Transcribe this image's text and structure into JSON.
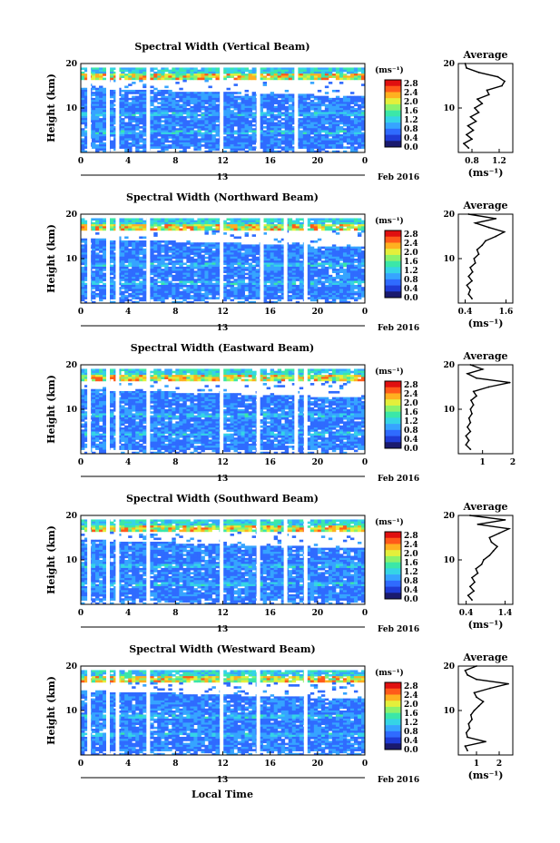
{
  "figure": {
    "shared_xlabel": "Local Time",
    "date_label": "Feb 2016",
    "day_label": "13",
    "colorbar_unit": "(ms⁻¹)",
    "colormap": [
      "#1a1a6e",
      "#1f3cd6",
      "#2f6bff",
      "#36a4ff",
      "#35d4e6",
      "#3be7a8",
      "#8cf26b",
      "#e4ef3b",
      "#ffb020",
      "#ff5a1a",
      "#e01010"
    ],
    "colorbar_ticks": [
      "2.8",
      "2.4",
      "2.0",
      "1.6",
      "1.2",
      "0.8",
      "0.4",
      "0.0"
    ]
  },
  "chart_data": [
    {
      "type": "heatmap",
      "title": "Spectral Width (Vertical Beam)",
      "xlabel": "",
      "ylabel": "Height (km)",
      "x_ticks": [
        "0",
        "4",
        "8",
        "12",
        "16",
        "20",
        "0"
      ],
      "y_ticks": [
        "20",
        "10"
      ],
      "xlim": [
        0,
        24
      ],
      "ylim": [
        0,
        20
      ],
      "unit": "ms^-1",
      "clim": [
        0,
        3.0
      ],
      "data_gaps_hours": [
        0.7,
        2.3,
        3.1,
        5.7,
        11.9,
        15.0,
        18.2
      ],
      "avg_profile": {
        "title": "Average",
        "xlabel": "(ms⁻¹)",
        "x_ticks": [
          "0.8",
          "1.2"
        ],
        "xlim": [
          0.6,
          1.4
        ],
        "height_km": [
          1,
          2,
          3,
          4,
          5,
          6,
          7,
          8,
          9,
          10,
          11,
          12,
          13,
          14,
          15,
          16,
          17,
          18,
          19,
          20
        ],
        "values": [
          0.75,
          0.68,
          0.8,
          0.72,
          0.82,
          0.74,
          0.86,
          0.78,
          0.9,
          0.84,
          0.95,
          0.88,
          1.05,
          1.02,
          1.24,
          1.28,
          1.18,
          0.9,
          0.72,
          0.7
        ]
      }
    },
    {
      "type": "heatmap",
      "title": "Spectral Width (Northward Beam)",
      "xlabel": "",
      "ylabel": "Height (km)",
      "x_ticks": [
        "0",
        "4",
        "8",
        "12",
        "16",
        "20",
        "0"
      ],
      "y_ticks": [
        "20",
        "10"
      ],
      "xlim": [
        0,
        24
      ],
      "ylim": [
        0,
        20
      ],
      "unit": "ms^-1",
      "clim": [
        0,
        3.0
      ],
      "data_gaps_hours": [
        0.7,
        2.3,
        3.1,
        5.7,
        11.9,
        15.3,
        17.3,
        19.0
      ],
      "avg_profile": {
        "title": "Average",
        "xlabel": "(ms⁻¹)",
        "x_ticks": [
          "0.4",
          "1.6"
        ],
        "xlim": [
          0.2,
          1.8
        ],
        "height_km": [
          1,
          2,
          3,
          4,
          5,
          6,
          7,
          8,
          9,
          10,
          11,
          12,
          13,
          14,
          15,
          16,
          17,
          18,
          19,
          20
        ],
        "values": [
          0.6,
          0.5,
          0.55,
          0.45,
          0.6,
          0.5,
          0.62,
          0.55,
          0.7,
          0.66,
          0.8,
          0.75,
          0.9,
          1.0,
          1.3,
          1.55,
          1.1,
          0.7,
          1.3,
          0.5
        ]
      }
    },
    {
      "type": "heatmap",
      "title": "Spectral Width (Eastward Beam)",
      "xlabel": "",
      "ylabel": "Height (km)",
      "x_ticks": [
        "0",
        "4",
        "8",
        "12",
        "16",
        "20",
        "0"
      ],
      "y_ticks": [
        "20",
        "10"
      ],
      "xlim": [
        0,
        24
      ],
      "ylim": [
        0,
        20
      ],
      "unit": "ms^-1",
      "clim": [
        0,
        3.0
      ],
      "data_gaps_hours": [
        0.7,
        2.3,
        3.1,
        5.7,
        11.9,
        15.0,
        18.2,
        19.0
      ],
      "avg_profile": {
        "title": "Average",
        "xlabel": "",
        "x_ticks": [
          "1",
          "2"
        ],
        "xlim": [
          0.2,
          2.0
        ],
        "height_km": [
          1,
          2,
          3,
          4,
          5,
          6,
          7,
          8,
          9,
          10,
          11,
          12,
          13,
          14,
          15,
          16,
          17,
          18,
          19,
          20
        ],
        "values": [
          0.6,
          0.45,
          0.55,
          0.45,
          0.6,
          0.5,
          0.6,
          0.55,
          0.65,
          0.6,
          0.7,
          0.62,
          0.8,
          0.7,
          1.2,
          1.9,
          0.8,
          0.5,
          1.0,
          0.6
        ]
      }
    },
    {
      "type": "heatmap",
      "title": "Spectral Width (Southward Beam)",
      "xlabel": "",
      "ylabel": "Height (km)",
      "x_ticks": [
        "0",
        "4",
        "8",
        "12",
        "16",
        "20",
        "0"
      ],
      "y_ticks": [
        "20",
        "10"
      ],
      "xlim": [
        0,
        24
      ],
      "ylim": [
        0,
        20
      ],
      "unit": "ms^-1",
      "clim": [
        0,
        3.0
      ],
      "data_gaps_hours": [
        0.7,
        2.3,
        3.1,
        5.7,
        11.9,
        15.0,
        17.3,
        19.0
      ],
      "avg_profile": {
        "title": "Average",
        "xlabel": "(ms⁻¹)",
        "x_ticks": [
          "0.4",
          "1.4"
        ],
        "xlim": [
          0.2,
          1.6
        ],
        "height_km": [
          1,
          2,
          3,
          4,
          5,
          6,
          7,
          8,
          9,
          10,
          11,
          12,
          13,
          14,
          15,
          16,
          17,
          18,
          19,
          20
        ],
        "values": [
          0.55,
          0.45,
          0.6,
          0.5,
          0.62,
          0.55,
          0.7,
          0.65,
          0.8,
          0.85,
          1.0,
          1.1,
          1.2,
          1.05,
          1.0,
          1.25,
          1.5,
          0.7,
          1.4,
          0.5
        ]
      }
    },
    {
      "type": "heatmap",
      "title": "Spectral Width (Westward Beam)",
      "xlabel": "Local Time",
      "ylabel": "Height (km)",
      "x_ticks": [
        "0",
        "4",
        "8",
        "12",
        "16",
        "20",
        "0"
      ],
      "y_ticks": [
        "20",
        "10"
      ],
      "xlim": [
        0,
        24
      ],
      "ylim": [
        0,
        20
      ],
      "unit": "ms^-1",
      "clim": [
        0,
        3.0
      ],
      "data_gaps_hours": [
        0.7,
        2.3,
        3.1,
        5.7,
        11.9,
        15.0,
        19.0
      ],
      "avg_profile": {
        "title": "Average",
        "xlabel": "(ms⁻¹)",
        "x_ticks": [
          "1",
          "2"
        ],
        "xlim": [
          0.2,
          2.6
        ],
        "height_km": [
          1,
          2,
          3,
          4,
          5,
          6,
          7,
          8,
          9,
          10,
          11,
          12,
          13,
          14,
          15,
          16,
          17,
          18,
          19,
          20
        ],
        "values": [
          0.6,
          0.5,
          1.4,
          0.6,
          0.55,
          0.7,
          0.65,
          0.8,
          0.75,
          0.9,
          1.1,
          1.3,
          1.0,
          0.9,
          1.6,
          2.4,
          1.0,
          0.6,
          0.5,
          1.0
        ]
      }
    }
  ]
}
